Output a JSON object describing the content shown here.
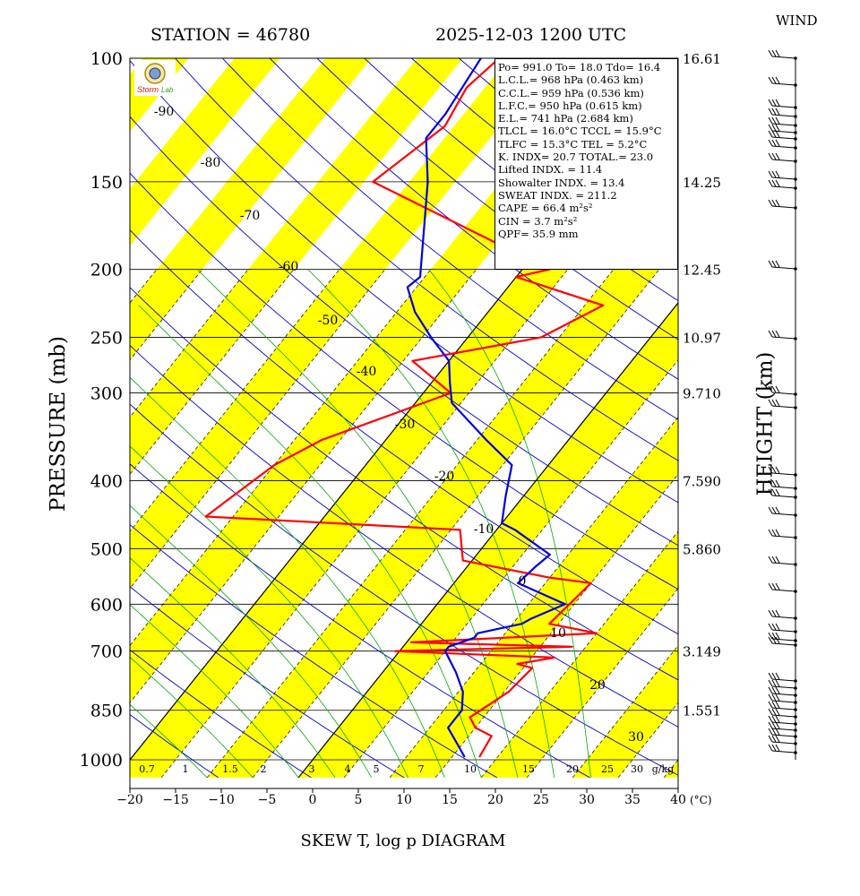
{
  "header": {
    "station": "STATION = 46780",
    "datetime": "2025-12-03  1200 UTC"
  },
  "wind_title": "WIND",
  "bottom_title": "SKEW T, log p DIAGRAM",
  "logo_text": "Storm Lab",
  "info_box": {
    "lines": [
      "Po= 991.0 To= 18.0 Tdo= 16.4",
      "L.C.L.= 968 hPa (0.463 km)",
      "C.C.L.= 959 hPa (0.536 km)",
      "L.F.C.= 950 hPa (0.615 km)",
      "E.L.= 741 hPa (2.684 km)",
      "TLCL = 16.0°C  TCCL = 15.9°C",
      "TLFC = 15.3°C  TEL = 5.2°C",
      "K. INDX= 20.7  TOTAL.= 23.0",
      "Lifted INDX. =  11.4",
      "Showalter INDX. =   13.4",
      "SWEAT INDX. =  211.2",
      "CAPE =   66.4 m²s²",
      "CIN  =    3.7 m²s²",
      "QPF= 35.9 mm"
    ]
  },
  "chart_data": {
    "type": "line",
    "title": "SKEW T, log p DIAGRAM",
    "ylabel": "PRESSURE (mb)",
    "ylabel_right": "HEIGHT (km)",
    "xlabel_unit": "(°C)",
    "xlim": [
      -20,
      40
    ],
    "ylim": [
      1000,
      100
    ],
    "y_scale": "log",
    "x_ticks": [
      -20,
      -15,
      -10,
      -5,
      0,
      5,
      10,
      15,
      20,
      25,
      30,
      35,
      40
    ],
    "x_tick_labels": [
      "−20",
      "−15",
      "−10",
      "−5",
      "0",
      "5",
      "10",
      "15",
      "20",
      "25",
      "30",
      "35",
      "40"
    ],
    "pressure_levels": [
      100,
      150,
      200,
      250,
      300,
      400,
      500,
      600,
      700,
      850,
      1000
    ],
    "height_labels": [
      {
        "p": 100,
        "label": "16.61"
      },
      {
        "p": 150,
        "label": "14.25"
      },
      {
        "p": 200,
        "label": "12.45"
      },
      {
        "p": 250,
        "label": "10.97"
      },
      {
        "p": 300,
        "label": "9.710"
      },
      {
        "p": 400,
        "label": "7.590"
      },
      {
        "p": 500,
        "label": "5.860"
      },
      {
        "p": 700,
        "label": "3.149"
      },
      {
        "p": 850,
        "label": "1.551"
      }
    ],
    "isotherm_labels": [
      "-90",
      "-80",
      "-70",
      "-60",
      "-50",
      "-40",
      "-30",
      "-20",
      "-10",
      "0",
      "10",
      "20",
      "30"
    ],
    "mixing_ratio_labels": [
      "0.7",
      "1",
      "1.5",
      "2",
      "3",
      "4",
      "5",
      "7",
      "10",
      "15",
      "20",
      "25",
      "30",
      "g/kg"
    ],
    "series": [
      {
        "color": "#ff0000",
        "points": [
          [
            18.0,
            991
          ],
          [
            17.5,
            925
          ],
          [
            15.0,
            900
          ],
          [
            13.5,
            870
          ],
          [
            15.5,
            800
          ],
          [
            16.0,
            740
          ],
          [
            14.0,
            730
          ],
          [
            17.5,
            715
          ],
          [
            -0.5,
            700
          ],
          [
            18.5,
            690
          ],
          [
            0.5,
            680
          ],
          [
            20.0,
            660
          ],
          [
            14.0,
            640
          ],
          [
            15.0,
            560
          ],
          [
            10.0,
            550
          ],
          [
            -1.0,
            520
          ],
          [
            -4.0,
            470
          ],
          [
            -33.0,
            450
          ],
          [
            -30.0,
            380
          ],
          [
            -27.0,
            350
          ],
          [
            -17.0,
            300
          ],
          [
            -24.0,
            270
          ],
          [
            -12.0,
            250
          ],
          [
            -8.0,
            225
          ],
          [
            -20.0,
            205
          ],
          [
            -17.0,
            200
          ],
          [
            -44.0,
            150
          ],
          [
            -41.0,
            125
          ],
          [
            -42.0,
            110
          ],
          [
            -41.0,
            100
          ]
        ]
      },
      {
        "color": "#0000dd",
        "points": [
          [
            16.4,
            991
          ],
          [
            14.0,
            940
          ],
          [
            12.0,
            900
          ],
          [
            12.0,
            850
          ],
          [
            10.5,
            800
          ],
          [
            8.0,
            750
          ],
          [
            5.0,
            700
          ],
          [
            5.0,
            690
          ],
          [
            7.0,
            670
          ],
          [
            7.0,
            660
          ],
          [
            11.0,
            640
          ],
          [
            11.5,
            630
          ],
          [
            14.0,
            600
          ],
          [
            7.0,
            560
          ],
          [
            7.5,
            530
          ],
          [
            8.0,
            510
          ],
          [
            2.0,
            470
          ],
          [
            0.0,
            460
          ],
          [
            -2.0,
            420
          ],
          [
            -4.0,
            380
          ],
          [
            -9.0,
            350
          ],
          [
            -16.0,
            310
          ],
          [
            -18.0,
            290
          ],
          [
            -20.0,
            270
          ],
          [
            -24.0,
            250
          ],
          [
            -28.0,
            230
          ],
          [
            -31.0,
            212
          ],
          [
            -30.5,
            205
          ],
          [
            -38.0,
            150
          ],
          [
            -42.0,
            130
          ],
          [
            -42.0,
            120
          ],
          [
            -43.0,
            100
          ]
        ]
      }
    ]
  },
  "colors": {
    "temperature": "#ff0000",
    "dewpoint": "#0000dd",
    "isotherm": "#0000cc",
    "mixing_ratio": "#00aa00",
    "band": "#ffff00"
  }
}
